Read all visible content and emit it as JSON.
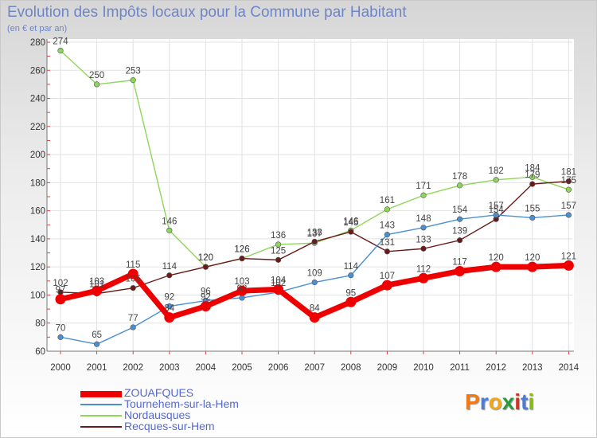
{
  "title": "Evolution des Impôts locaux pour la Commune par Habitant",
  "subtitle": "(en € et par an)",
  "brand": {
    "text": "Proxiti",
    "letters": [
      "P",
      "r",
      "o",
      "x",
      "i",
      "t",
      "i"
    ],
    "colors": [
      "#f07a18",
      "#4a7cd8",
      "#f0a818",
      "#2c9a3c",
      "#d83020",
      "#4a7cd8",
      "#8ab818"
    ]
  },
  "chart_data": {
    "type": "line",
    "categories": [
      "2000",
      "2001",
      "2002",
      "2003",
      "2004",
      "2005",
      "2006",
      "2007",
      "2008",
      "2009",
      "2010",
      "2011",
      "2012",
      "2013",
      "2014"
    ],
    "ylim": [
      60,
      280
    ],
    "yticks": [
      60,
      80,
      100,
      120,
      140,
      160,
      180,
      200,
      220,
      240,
      260,
      280
    ],
    "grid": true,
    "legend_position": "bottom-left",
    "series": [
      {
        "name": "ZOUAFQUES",
        "color": "#ee0000",
        "values": [
          97,
          103,
          115,
          84,
          92,
          103,
          104,
          84,
          95,
          107,
          112,
          117,
          120,
          120,
          121
        ],
        "labels": [
          "97",
          "103",
          "115",
          "84",
          "92",
          "103",
          "104",
          "84",
          "95",
          "107",
          "112",
          "117",
          "120",
          "120",
          "121"
        ]
      },
      {
        "name": "Tournehem-sur-la-Hem",
        "color": "#4a8fd0",
        "values": [
          70,
          65,
          77,
          92,
          96,
          98,
          102,
          109,
          114,
          143,
          148,
          154,
          157,
          155,
          157
        ],
        "labels": [
          "70",
          "65",
          "77",
          "92",
          "96",
          "98",
          "102",
          "109",
          "114",
          "143",
          "148",
          "154",
          "157",
          "155",
          "157"
        ]
      },
      {
        "name": "Nordausques",
        "color": "#8ed65a",
        "values": [
          274,
          250,
          253,
          146,
          120,
          126,
          136,
          137,
          146,
          161,
          171,
          178,
          182,
          184,
          175
        ],
        "labels": [
          "274",
          "250",
          "253",
          "146",
          "120",
          "126",
          "136",
          "137",
          "146",
          "161",
          "171",
          "178",
          "182",
          "184",
          "175"
        ]
      },
      {
        "name": "Recques-sur-Hem",
        "color": "#6a1a1a",
        "values": [
          102,
          101,
          105,
          114,
          120,
          126,
          125,
          138,
          145,
          131,
          133,
          139,
          154,
          179,
          181
        ],
        "labels": [
          "102",
          "101",
          "105",
          "114",
          "120",
          "126",
          "125",
          "138",
          "145",
          "131",
          "133",
          "139",
          "154",
          "179",
          "181"
        ]
      }
    ]
  }
}
